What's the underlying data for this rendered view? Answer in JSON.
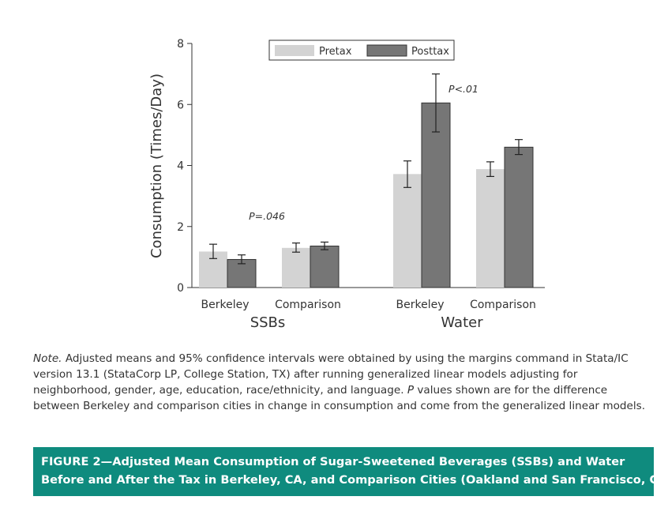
{
  "chart_data": {
    "type": "bar",
    "ylabel": "Consumption (Times/Day)",
    "ylim": [
      0,
      8
    ],
    "yticks": [
      0,
      2,
      4,
      6,
      8
    ],
    "legend": {
      "placement": "top-right",
      "entries": [
        "Pretax",
        "Posttax"
      ]
    },
    "series_colors": {
      "Pretax": "#d3d3d3",
      "Posttax": "#767676"
    },
    "groups": [
      {
        "label": "SSBs",
        "categories": [
          {
            "label": "Berkeley",
            "pretax": 1.18,
            "pretax_ci": [
              0.95,
              1.42
            ],
            "posttax": 0.92,
            "posttax_ci": [
              0.78,
              1.07
            ]
          },
          {
            "label": "Comparison",
            "pretax": 1.3,
            "pretax_ci": [
              1.16,
              1.46
            ],
            "posttax": 1.36,
            "posttax_ci": [
              1.24,
              1.49
            ]
          }
        ],
        "annotation": "P=.046"
      },
      {
        "label": "Water",
        "categories": [
          {
            "label": "Berkeley",
            "pretax": 3.72,
            "pretax_ci": [
              3.28,
              4.15
            ],
            "posttax": 6.05,
            "posttax_ci": [
              5.1,
              7.0
            ]
          },
          {
            "label": "Comparison",
            "pretax": 3.88,
            "pretax_ci": [
              3.64,
              4.12
            ],
            "posttax": 4.6,
            "posttax_ci": [
              4.36,
              4.85
            ]
          }
        ],
        "annotation": "P<.01"
      }
    ]
  },
  "note": {
    "lead": "Note.",
    "body": " Adjusted means and 95% confidence intervals were obtained by using the margins command in Stata/IC version 13.1 (StataCorp LP, College Station, TX) after running generalized linear models adjusting for neighborhood, gender, age, education, race/ethnicity, and language. ",
    "p_letter": "P",
    "tail": " values shown are for the difference between Berkeley and comparison cities in change in consumption and come from the generalized linear models."
  },
  "caption": {
    "line1": "FIGURE 2—Adjusted Mean Consumption of Sugar-Sweetened Beverages (SSBs) and Water",
    "line2": "Before and After the Tax in Berkeley, CA, and Comparison Cities (Oakland and San Francisco, CA)"
  }
}
